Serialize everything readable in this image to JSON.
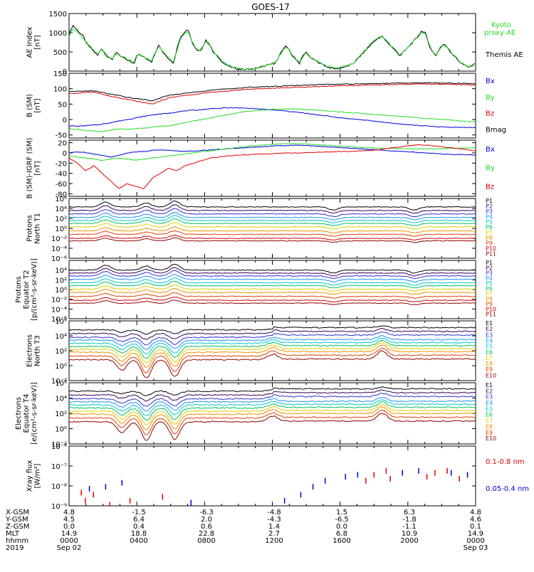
{
  "title": "GOES-17",
  "colors": {
    "black": "#000000",
    "red": "#e00000",
    "green": "#22dd22",
    "blue": "#0000e0"
  },
  "panels": [
    {
      "id": "ae",
      "ylabel": [
        "AE Index",
        "[nT]"
      ],
      "type": "linear",
      "ymin": 0,
      "ymax": 1500,
      "ticks": [
        0,
        500,
        1000,
        1500
      ],
      "tick_labels": [
        "0",
        "500",
        "1000",
        "1500"
      ],
      "legend": [
        {
          "text": "Kyoto",
          "color": "#22dd22"
        },
        {
          "text": "proxy AE",
          "color": "#22dd22"
        },
        {
          "text": "Themis AE",
          "color": "#000000"
        }
      ],
      "series": [
        {
          "name": "Themis AE",
          "color": "#000000",
          "values": [
            950,
            1200,
            1100,
            1000,
            900,
            700,
            600,
            500,
            400,
            600,
            450,
            350,
            300,
            500,
            400,
            350,
            300,
            250,
            200,
            450,
            400,
            350,
            300,
            250,
            500,
            700,
            500,
            400,
            300,
            200,
            600,
            900,
            1000,
            1100,
            800,
            600,
            500,
            600,
            800,
            700,
            500,
            400,
            300,
            200,
            150,
            100,
            80,
            60,
            50,
            40,
            60,
            50,
            80,
            100,
            120,
            150,
            180,
            200,
            300,
            500,
            650,
            600,
            400,
            300,
            200,
            400,
            500,
            350,
            300,
            250,
            200,
            150,
            100,
            80,
            60,
            80,
            100,
            120,
            150,
            200,
            300,
            400,
            500,
            600,
            700,
            800,
            850,
            900,
            800,
            700,
            600,
            500,
            400,
            500,
            600,
            700,
            800,
            900,
            1050,
            1000,
            700,
            500,
            400,
            600,
            700,
            650,
            500,
            400,
            300,
            200,
            150,
            100,
            150,
            200
          ]
        },
        {
          "name": "Kyoto proxy AE",
          "color": "#22dd22",
          "values": [
            900,
            1100,
            1050,
            950,
            850,
            700,
            650,
            500,
            450,
            550,
            480,
            380,
            320,
            450,
            420,
            370,
            320,
            270,
            230,
            430,
            420,
            360,
            320,
            280,
            480,
            650,
            520,
            420,
            330,
            230,
            550,
            850,
            950,
            1050,
            820,
            620,
            520,
            620,
            780,
            720,
            520,
            420,
            320,
            220,
            170,
            120,
            90,
            70,
            60,
            50,
            60,
            60,
            80,
            110,
            130,
            160,
            190,
            210,
            310,
            480,
            620,
            600,
            420,
            320,
            220,
            380,
            480,
            360,
            310,
            260,
            210,
            160,
            110,
            90,
            70,
            90,
            110,
            130,
            160,
            210,
            310,
            420,
            520,
            620,
            720,
            820,
            870,
            920,
            820,
            720,
            620,
            520,
            420,
            520,
            620,
            720,
            820,
            920,
            1000,
            980,
            720,
            520,
            420,
            580,
            680,
            640,
            510,
            410,
            310,
            210,
            160,
            110,
            160,
            210
          ]
        }
      ]
    },
    {
      "id": "bsm",
      "ylabel": [
        "B (SM)",
        "[nT]"
      ],
      "type": "linear",
      "ymin": -60,
      "ymax": 150,
      "ticks": [
        -50,
        0,
        50,
        100,
        150
      ],
      "tick_labels": [
        "-50",
        "0",
        "50",
        "100",
        "150"
      ],
      "legend": [
        {
          "text": "Bx",
          "color": "#0000e0"
        },
        {
          "text": "By",
          "color": "#22dd22"
        },
        {
          "text": "Bz",
          "color": "#e00000"
        },
        {
          "text": "Bmag",
          "color": "#000000"
        }
      ],
      "series": [
        {
          "name": "Bx",
          "color": "#0000e0",
          "values": [
            -20,
            -22,
            -20,
            -18,
            -15,
            -10,
            -5,
            0,
            5,
            10,
            15,
            18,
            20,
            25,
            28,
            30,
            32,
            35,
            36,
            38,
            38,
            37,
            36,
            34,
            32,
            30,
            28,
            25,
            22,
            18,
            15,
            12,
            8,
            5,
            2,
            0,
            -3,
            -6,
            -9,
            -12,
            -15,
            -17,
            -19,
            -21,
            -23,
            -24,
            -25,
            -25,
            -26,
            -26
          ]
        },
        {
          "name": "By",
          "color": "#22dd22",
          "values": [
            -30,
            -32,
            -35,
            -38,
            -40,
            -35,
            -30,
            -32,
            -30,
            -28,
            -25,
            -22,
            -20,
            -15,
            -10,
            -5,
            0,
            5,
            10,
            15,
            20,
            25,
            28,
            30,
            32,
            33,
            34,
            34,
            33,
            32,
            30,
            28,
            26,
            24,
            22,
            20,
            18,
            16,
            14,
            12,
            10,
            8,
            6,
            4,
            2,
            0,
            -2,
            -4,
            -6,
            -8
          ]
        },
        {
          "name": "Bz",
          "color": "#e00000",
          "values": [
            85,
            85,
            88,
            90,
            82,
            75,
            70,
            65,
            60,
            55,
            50,
            60,
            70,
            75,
            78,
            80,
            85,
            88,
            90,
            92,
            95,
            97,
            99,
            100,
            101,
            102,
            103,
            104,
            105,
            106,
            107,
            108,
            109,
            110,
            110,
            111,
            112,
            112,
            113,
            113,
            114,
            114,
            115,
            115,
            115,
            114,
            114,
            113,
            113,
            112
          ]
        },
        {
          "name": "Bmag",
          "color": "#000000",
          "values": [
            90,
            92,
            92,
            93,
            88,
            82,
            78,
            72,
            68,
            65,
            60,
            70,
            78,
            82,
            85,
            88,
            92,
            95,
            97,
            99,
            101,
            103,
            105,
            106,
            107,
            108,
            109,
            110,
            111,
            112,
            113,
            114,
            114,
            115,
            115,
            116,
            116,
            117,
            117,
            118,
            118,
            118,
            119,
            119,
            119,
            118,
            118,
            117,
            117,
            116
          ]
        }
      ]
    },
    {
      "id": "bigrf",
      "ylabel": [
        "B (SM)-IGRF (SM)",
        "[nT]"
      ],
      "type": "linear",
      "ymin": -85,
      "ymax": 25,
      "ticks": [
        -80,
        -60,
        -40,
        -20,
        0,
        20
      ],
      "tick_labels": [
        "-80",
        "-60",
        "-40",
        "-20",
        "0",
        "20"
      ],
      "legend": [
        {
          "text": "Bx",
          "color": "#0000e0"
        },
        {
          "text": "By",
          "color": "#22dd22"
        },
        {
          "text": "Bz",
          "color": "#e00000"
        }
      ],
      "series": [
        {
          "name": "Bx",
          "color": "#0000e0",
          "values": [
            0,
            2,
            1,
            -2,
            -5,
            -8,
            -5,
            0,
            2,
            3,
            5,
            6,
            5,
            4,
            3,
            4,
            5,
            6,
            7,
            8,
            9,
            10,
            11,
            12,
            13,
            14,
            14,
            15,
            15,
            14,
            13,
            12,
            11,
            10,
            9,
            8,
            7,
            6,
            5,
            4,
            3,
            2,
            1,
            0,
            -1,
            -2,
            -3,
            -3,
            -4,
            -4
          ]
        },
        {
          "name": "By",
          "color": "#22dd22",
          "values": [
            -5,
            -8,
            -10,
            -12,
            -15,
            -12,
            -10,
            -12,
            -14,
            -12,
            -10,
            -8,
            -6,
            -4,
            -2,
            0,
            2,
            4,
            6,
            8,
            10,
            12,
            14,
            15,
            16,
            17,
            18,
            18,
            18,
            17,
            16,
            15,
            14,
            13,
            12,
            11,
            10,
            10,
            9,
            9,
            8,
            8,
            8,
            8,
            8,
            8,
            9,
            9,
            10,
            10
          ]
        },
        {
          "name": "Bz",
          "color": "#e00000",
          "values": [
            -10,
            -20,
            -35,
            -25,
            -40,
            -55,
            -70,
            -60,
            -65,
            -70,
            -50,
            -40,
            -30,
            -35,
            -25,
            -20,
            -15,
            -10,
            -8,
            -6,
            -5,
            -4,
            -3,
            -2,
            -2,
            -1,
            0,
            0,
            0,
            1,
            1,
            2,
            2,
            3,
            3,
            4,
            5,
            6,
            8,
            10,
            12,
            14,
            16,
            15,
            14,
            12,
            10,
            8,
            6,
            4
          ]
        }
      ]
    },
    {
      "id": "pn",
      "ylabel": [
        "Protons",
        "North T1"
      ],
      "type": "log",
      "ymin": -6,
      "ymax": 6,
      "ticks": [
        -6,
        -4,
        -2,
        0,
        2,
        4,
        6
      ],
      "tick_labels": [
        "10⁻⁶",
        "10⁻⁴",
        "10⁻²",
        "10⁰",
        "10²",
        "10⁴",
        "10⁶"
      ],
      "legend": [
        {
          "text": "P1",
          "color": "#000000"
        },
        {
          "text": "P2",
          "color": "#3a005a"
        },
        {
          "text": "P3",
          "color": "#3030d0"
        },
        {
          "text": "P4",
          "color": "#2090ff"
        },
        {
          "text": "P5",
          "color": "#00c8c8"
        },
        {
          "text": "P6",
          "color": "#00c060"
        },
        {
          "text": "P7",
          "color": "#e0d000"
        },
        {
          "text": "P8",
          "color": "#f09000"
        },
        {
          "text": "P9",
          "color": "#e04000"
        },
        {
          "text": "P10",
          "color": "#d00000"
        },
        {
          "text": "P11",
          "color": "#900000"
        }
      ],
      "levels": [
        4.3,
        3.6,
        2.9,
        2.2,
        1.6,
        1.0,
        0.3,
        -0.5,
        -1.2,
        -2.0,
        -2.5
      ]
    },
    {
      "id": "pe",
      "ylabel": [
        "Protons",
        "Equator T2",
        "[p/(cm²-s-sr-keV)]"
      ],
      "type": "log",
      "ymin": -6,
      "ymax": 6,
      "ticks": [
        -6,
        -4,
        -2,
        0,
        2,
        4
      ],
      "tick_labels": [
        "10⁻⁶",
        "10⁻⁴",
        "10⁻²",
        "10⁰",
        "10²",
        "10⁴"
      ],
      "legend": [
        {
          "text": "P1",
          "color": "#000000"
        },
        {
          "text": "P2",
          "color": "#3a005a"
        },
        {
          "text": "P3",
          "color": "#3030d0"
        },
        {
          "text": "P4",
          "color": "#2090ff"
        },
        {
          "text": "P5",
          "color": "#00c8c8"
        },
        {
          "text": "P6",
          "color": "#00c060"
        },
        {
          "text": "P7",
          "color": "#e0d000"
        },
        {
          "text": "P8",
          "color": "#f09000"
        },
        {
          "text": "P9",
          "color": "#e04000"
        },
        {
          "text": "P10",
          "color": "#d00000"
        },
        {
          "text": "P11",
          "color": "#900000"
        }
      ],
      "levels": [
        4.0,
        3.4,
        2.8,
        2.1,
        1.4,
        0.8,
        0.1,
        -0.6,
        -1.4,
        -2.2,
        -2.8
      ]
    },
    {
      "id": "en",
      "ylabel": [
        "Electrons",
        "North T3"
      ],
      "type": "log",
      "ymin": -2,
      "ymax": 6,
      "ticks": [
        -2,
        0,
        2,
        4,
        6
      ],
      "tick_labels": [
        "10⁻²",
        "10⁰",
        "10²",
        "10⁴",
        "10⁶"
      ],
      "legend": [
        {
          "text": "E1",
          "color": "#000000"
        },
        {
          "text": "E2",
          "color": "#3a005a"
        },
        {
          "text": "E3",
          "color": "#3030d0"
        },
        {
          "text": "E4",
          "color": "#2090ff"
        },
        {
          "text": "E5",
          "color": "#00c8c8"
        },
        {
          "text": "E6",
          "color": "#00c060"
        },
        {
          "text": "E7",
          "color": "#e0d000"
        },
        {
          "text": "E8",
          "color": "#f09000"
        },
        {
          "text": "E9",
          "color": "#e04000"
        },
        {
          "text": "E10",
          "color": "#900000"
        }
      ],
      "levels": [
        4.8,
        4.3,
        3.8,
        3.4,
        3.0,
        2.6,
        2.2,
        1.8,
        1.3,
        0.8
      ]
    },
    {
      "id": "ee",
      "ylabel": [
        "Electrons",
        "Equator T4",
        "[e/(cm²-s-sr-keV)]"
      ],
      "type": "log",
      "ymin": -2,
      "ymax": 6,
      "ticks": [
        -2,
        0,
        2,
        4,
        6
      ],
      "tick_labels": [
        "10⁻²",
        "10⁰",
        "10²",
        "10⁴",
        "10⁶"
      ],
      "legend": [
        {
          "text": "E1",
          "color": "#000000"
        },
        {
          "text": "E2",
          "color": "#3a005a"
        },
        {
          "text": "E3",
          "color": "#3030d0"
        },
        {
          "text": "E4",
          "color": "#2090ff"
        },
        {
          "text": "E5",
          "color": "#00c8c8"
        },
        {
          "text": "E6",
          "color": "#00c060"
        },
        {
          "text": "E7",
          "color": "#e0d000"
        },
        {
          "text": "E8",
          "color": "#f09000"
        },
        {
          "text": "E9",
          "color": "#e04000"
        },
        {
          "text": "E10",
          "color": "#900000"
        }
      ],
      "levels": [
        4.9,
        4.4,
        3.9,
        3.5,
        3.1,
        2.7,
        2.3,
        1.9,
        1.4,
        0.9
      ]
    },
    {
      "id": "xray",
      "ylabel": [
        "Xray flux",
        "[W/m²]"
      ],
      "type": "log",
      "ymin": -9,
      "ymax": -6,
      "ticks": [
        -9,
        -8,
        -7,
        -6
      ],
      "tick_labels": [
        "10⁻⁹",
        "10⁻⁸",
        "10⁻⁷",
        "10⁻⁶"
      ],
      "legend": [
        {
          "text": "0.1-0.8 nm",
          "color": "#e00000"
        },
        {
          "text": "0.05-0.4 nm",
          "color": "#0000e0"
        }
      ]
    }
  ],
  "chart_data": {
    "type": "line",
    "title": "GOES-17",
    "x_ticks": [
      "0000",
      "0400",
      "0800",
      "1200",
      "1600",
      "2000",
      "0000"
    ],
    "x_tick_values_hours": [
      0,
      4,
      8,
      12,
      16,
      20,
      24
    ]
  },
  "footer": {
    "rows": [
      {
        "label": "X-GSM",
        "values": [
          "4.8",
          "-1.5",
          "-6.3",
          "-4.8",
          "1.5",
          "6.3",
          "4.8"
        ]
      },
      {
        "label": "Y-GSM",
        "values": [
          "4.5",
          "6.4",
          "2.0",
          "-4.3",
          "-6.5",
          "-1.8",
          "4.6"
        ]
      },
      {
        "label": "Z-GSM",
        "values": [
          "0.0",
          "0.4",
          "0.6",
          "1.4",
          "0.0",
          "-1.1",
          "0.1"
        ]
      },
      {
        "label": "MLT",
        "values": [
          "14.9",
          "18.8",
          "22.8",
          "2.7",
          "6.8",
          "10.9",
          "14.9"
        ]
      },
      {
        "label": "hhmm",
        "values": [
          "0000",
          "0400",
          "0800",
          "1200",
          "1600",
          "2000",
          "0000"
        ]
      }
    ],
    "year": "2019",
    "date_start": "Sep 02",
    "date_end": "Sep 03"
  }
}
